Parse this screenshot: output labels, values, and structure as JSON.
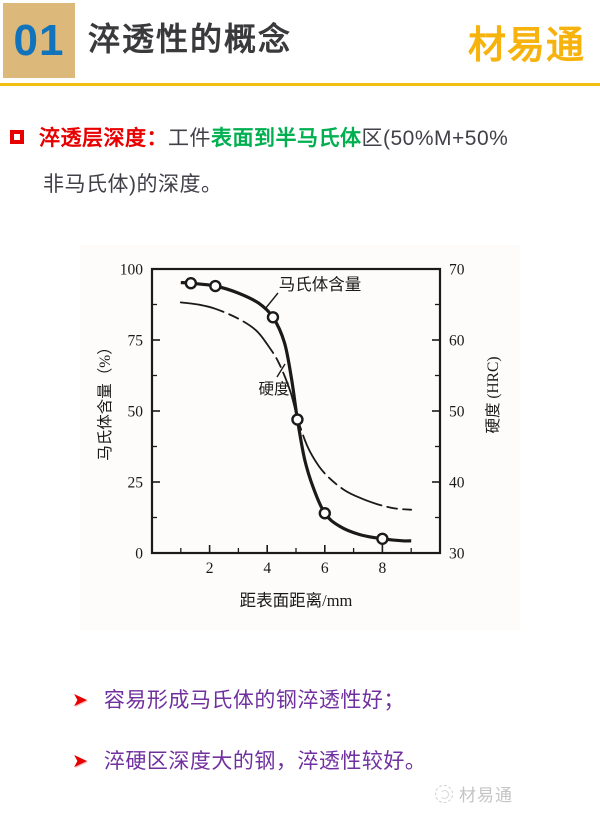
{
  "header": {
    "number": "01",
    "title": "淬透性的概念",
    "brand": "材易通"
  },
  "colors": {
    "accent_red": "#E80000",
    "highlight_green": "#00B050",
    "bullet_purple": "#70309F",
    "brand_gold": "#F7B30D",
    "rule_gold": "#F2C013",
    "number_blue": "#1173BC",
    "number_box_tan": "#DDB87B",
    "body_dark": "#404048",
    "chart_ink": "#1A1A1A",
    "watermark_gray": "#C5C5C5"
  },
  "icons": {
    "arrow_bullet": "➤",
    "square_bullet": "hollow-red-square",
    "watermark_logo": "circle-swirl"
  },
  "definition": {
    "lines": [
      {
        "segments": [
          {
            "text": "淬透层深度：",
            "style": "term"
          },
          {
            "text": "工件",
            "style": "body"
          },
          {
            "text": "表面到半马氏体",
            "style": "highlight"
          },
          {
            "text": "区(50%M+50%",
            "style": "body"
          }
        ]
      },
      {
        "segments": [
          {
            "text": "非马氏体)的深度。",
            "style": "body"
          }
        ]
      }
    ]
  },
  "chart_data": {
    "type": "line",
    "title": "",
    "xlabel": "距表面距离/mm",
    "ylabel_left": "马氏体含量（%）",
    "ylabel_right": "硬度 (HRC)",
    "xlim": [
      0,
      10
    ],
    "xticks": [
      2,
      4,
      6,
      8
    ],
    "xticks_minor": [
      1,
      3,
      5,
      7,
      9
    ],
    "ylim_left": [
      0,
      100
    ],
    "yticks_left": [
      0,
      25,
      50,
      75,
      100
    ],
    "ylim_right": [
      30,
      70
    ],
    "yticks_right": [
      30,
      40,
      50,
      60,
      70
    ],
    "grid": false,
    "ink_color": "#1A1A1A",
    "series": [
      {
        "name": "马氏体含量",
        "axis": "left",
        "style": "solid-thick-with-circle-markers",
        "points": [
          [
            1.0,
            95.2
          ],
          [
            1.35,
            95
          ],
          [
            2.2,
            94
          ],
          [
            3.0,
            91.5
          ],
          [
            3.7,
            88
          ],
          [
            4.2,
            83
          ],
          [
            4.6,
            74
          ],
          [
            4.85,
            61
          ],
          [
            5.05,
            47
          ],
          [
            5.3,
            33
          ],
          [
            5.6,
            23
          ],
          [
            6.0,
            14
          ],
          [
            6.5,
            9.5
          ],
          [
            7.2,
            6.5
          ],
          [
            8.0,
            5
          ],
          [
            8.7,
            4.3
          ],
          [
            9.0,
            4.3
          ]
        ],
        "marker_points": [
          [
            1.35,
            95
          ],
          [
            2.2,
            94
          ],
          [
            4.2,
            83
          ],
          [
            5.05,
            47
          ],
          [
            6.0,
            14
          ],
          [
            8.0,
            5
          ]
        ]
      },
      {
        "name": "硬度",
        "axis": "right",
        "style": "thin-dash-dot",
        "points": [
          [
            1.0,
            65.3
          ],
          [
            1.6,
            65.0
          ],
          [
            2.2,
            64.4
          ],
          [
            3.0,
            63.0
          ],
          [
            3.6,
            61.4
          ],
          [
            4.0,
            59.4
          ],
          [
            4.4,
            56.8
          ],
          [
            4.8,
            52.8
          ],
          [
            5.05,
            49.0
          ],
          [
            5.4,
            45.0
          ],
          [
            5.8,
            42.2
          ],
          [
            6.2,
            40.4
          ],
          [
            6.7,
            38.8
          ],
          [
            7.2,
            37.8
          ],
          [
            7.8,
            36.9
          ],
          [
            8.4,
            36.3
          ],
          [
            9.0,
            36.1
          ]
        ]
      }
    ]
  },
  "bullets": [
    "容易形成马氏体的钢淬透性好；",
    "淬硬区深度大的钢，淬透性较好。"
  ],
  "watermark": {
    "text": "材易通"
  }
}
